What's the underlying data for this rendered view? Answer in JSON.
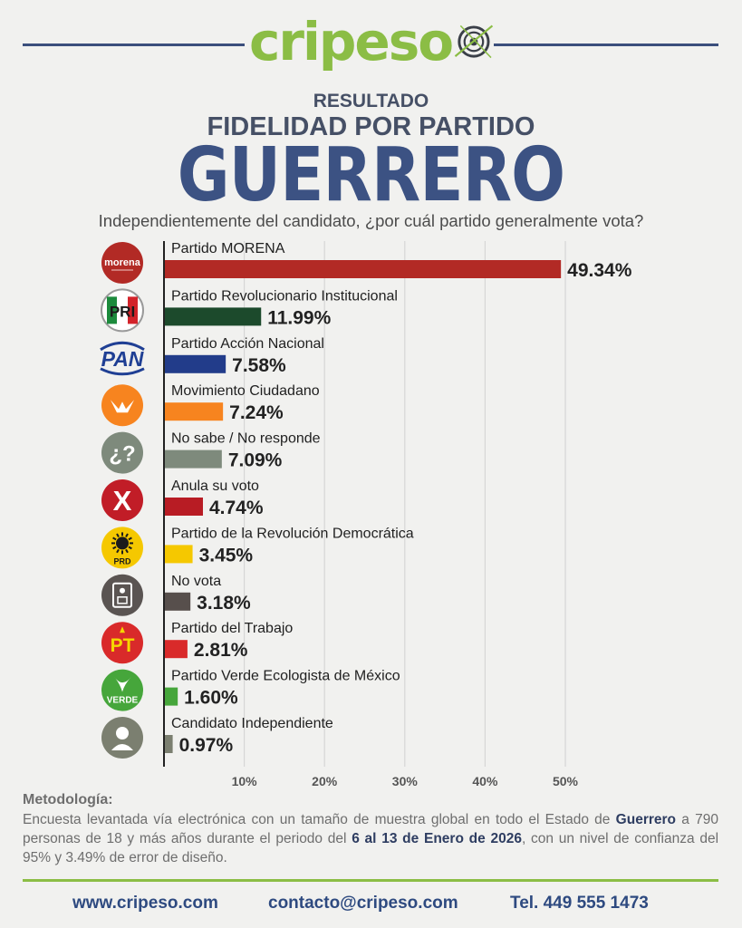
{
  "header": {
    "brand": "cripeso",
    "subtitle": "RESULTADO",
    "title": "FIDELIDAD POR PARTIDO",
    "state": "GUERRERO",
    "question": "Independientemente del candidato, ¿por cuál partido generalmente vota?"
  },
  "chart_data": {
    "type": "bar",
    "orientation": "horizontal",
    "categories": [
      "Partido MORENA",
      "Partido Revolucionario Institucional",
      "Partido Acción Nacional",
      "Movimiento Ciudadano",
      "No sabe / No responde",
      "Anula su voto",
      "Partido de la Revolución Democrática",
      "No vota",
      "Partido del Trabajo",
      "Partido Verde Ecologista de México",
      "Candidato Independiente"
    ],
    "values": [
      49.34,
      11.99,
      7.58,
      7.24,
      7.09,
      4.74,
      3.45,
      3.18,
      2.81,
      1.6,
      0.97
    ],
    "value_labels": [
      "49.34%",
      "11.99%",
      "7.58%",
      "7.24%",
      "7.09%",
      "4.74%",
      "3.45%",
      "3.18%",
      "2.81%",
      "1.60%",
      "0.97%"
    ],
    "colors": [
      "#b22a25",
      "#1c4a2c",
      "#223c8a",
      "#f7841f",
      "#7e8a7c",
      "#b81c24",
      "#f5c800",
      "#574f4c",
      "#d92a2a",
      "#46a63b",
      "#7b7f70"
    ],
    "icons": [
      "morena-logo-icon",
      "pri-logo-icon",
      "pan-logo-icon",
      "mc-logo-icon",
      "question-icon",
      "x-icon",
      "prd-logo-icon",
      "ballot-icon",
      "pt-logo-icon",
      "verde-logo-icon",
      "person-icon"
    ],
    "icon_labels": [
      "morena",
      "PRI",
      "PAN",
      "",
      "¿?",
      "X",
      "PRD",
      "",
      "PT",
      "VERDE",
      ""
    ],
    "x_ticks": [
      10,
      20,
      30,
      40,
      50
    ],
    "x_tick_labels": [
      "10%",
      "20%",
      "30%",
      "40%",
      "50%"
    ],
    "xlim": [
      0,
      50
    ],
    "grid": true
  },
  "methodology": {
    "title": "Metodología:",
    "p1": "Encuesta levantada vía electrónica con un tamaño de muestra global en todo el Estado de ",
    "state": "Guerrero",
    "p2": " a 790 personas de 18 y más años durante el periodo del ",
    "period": "6 al 13 de Enero de 2026",
    "p3": ", con un nivel de confianza del 95% y 3.49% de error de diseño."
  },
  "footer": {
    "website": "www.cripeso.com",
    "email": "contacto@cripeso.com",
    "phone": "Tel. 449 555 1473"
  }
}
